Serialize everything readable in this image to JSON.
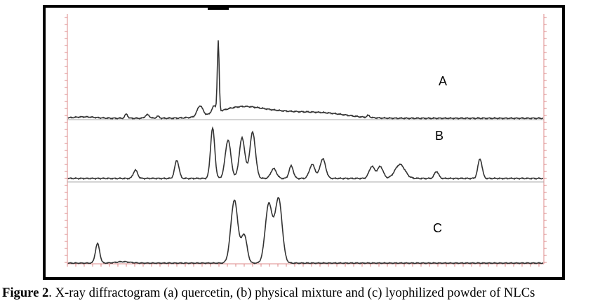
{
  "panels": [
    {
      "label": "A"
    },
    {
      "label": "B"
    },
    {
      "label": "C"
    }
  ],
  "caption": {
    "label": "Figure 2",
    "text": ". X-ray diffractogram (a) quercetin, (b) physical mixture and (c) lyophilized powder of NLCs"
  }
}
